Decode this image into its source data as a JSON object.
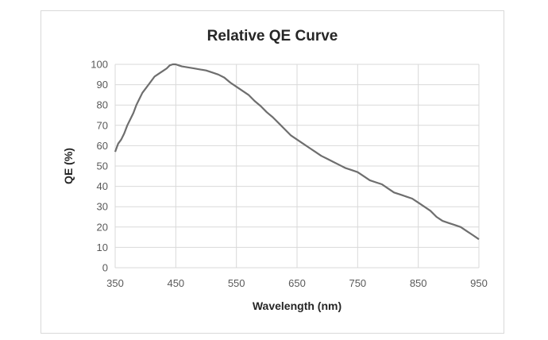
{
  "chart_data": {
    "type": "line",
    "title": "Relative QE Curve",
    "xlabel": "Wavelength (nm)",
    "ylabel": "QE (%)",
    "xlim": [
      350,
      950
    ],
    "ylim": [
      0,
      100
    ],
    "xticks": [
      350,
      450,
      550,
      650,
      750,
      850,
      950
    ],
    "yticks": [
      0,
      10,
      20,
      30,
      40,
      50,
      60,
      70,
      80,
      90,
      100
    ],
    "grid": true,
    "legend": "none",
    "line_color": "#6e6e6e",
    "grid_color": "#d9d9d9",
    "series": [
      {
        "x": [
          350,
          355,
          360,
          365,
          370,
          375,
          380,
          385,
          390,
          395,
          400,
          405,
          410,
          415,
          420,
          425,
          430,
          435,
          440,
          445,
          450,
          455,
          460,
          470,
          480,
          490,
          500,
          510,
          520,
          530,
          540,
          550,
          560,
          570,
          580,
          590,
          600,
          610,
          620,
          630,
          640,
          650,
          660,
          670,
          680,
          690,
          700,
          710,
          720,
          730,
          740,
          750,
          760,
          770,
          780,
          790,
          800,
          810,
          820,
          830,
          840,
          850,
          860,
          870,
          880,
          890,
          900,
          910,
          920,
          930,
          940,
          950
        ],
        "y": [
          57,
          61,
          63,
          66,
          70,
          73,
          76,
          80,
          83,
          86,
          88,
          90,
          92,
          94,
          95,
          96,
          97,
          98,
          99.5,
          100,
          100,
          99.5,
          99,
          98.5,
          98,
          97.5,
          97,
          96,
          95,
          93.5,
          91,
          89,
          87,
          85,
          82,
          79.5,
          76.5,
          74,
          71,
          68,
          65,
          63,
          61,
          59,
          57,
          55,
          53.5,
          52,
          50.5,
          49,
          48,
          47,
          45,
          43,
          42,
          41,
          39,
          37,
          36,
          35,
          34,
          32,
          30,
          28,
          25,
          23,
          22,
          21,
          20,
          18,
          16,
          14
        ]
      }
    ]
  }
}
